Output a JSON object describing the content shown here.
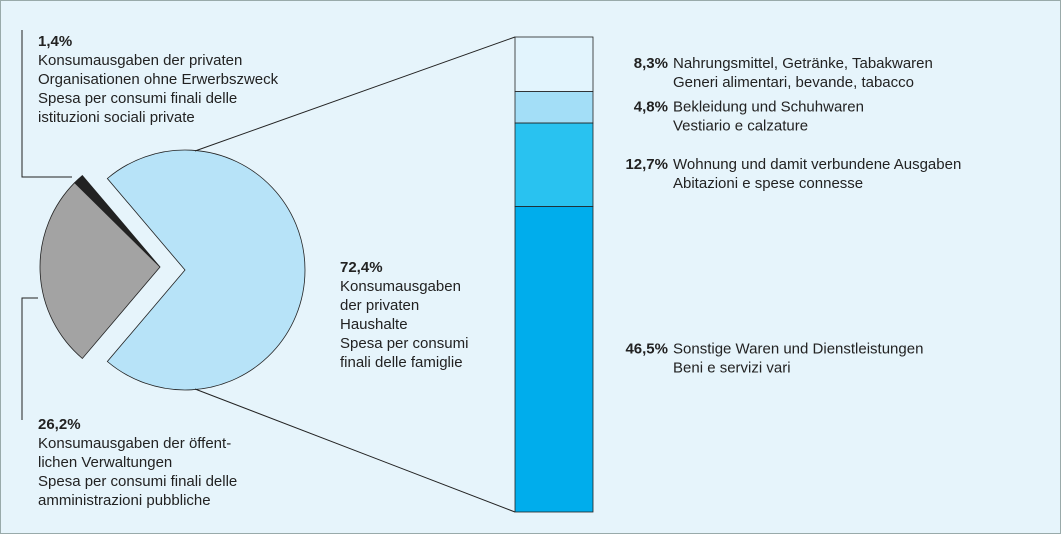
{
  "chart_data": {
    "type": "pie",
    "values": [
      72.4,
      1.4,
      26.2
    ],
    "value_labels": [
      "72,4%",
      "1,4%",
      "26,2%"
    ],
    "colors": [
      "#b7e3f8",
      "#222222",
      "#a3a3a3"
    ],
    "categories": [
      [
        "Konsumausgaben",
        "der privaten",
        "Haushalte",
        "Spesa per consumi",
        "finali delle famiglie"
      ],
      [
        "Konsumausgaben der privaten",
        "Organisationen ohne Erwerbszweck",
        "Spesa per consumi finali delle",
        "istituzioni sociali private"
      ],
      [
        "Konsumausgaben der öffent-",
        "lichen Verwaltungen",
        "Spesa per consumi finali delle",
        "amministrazioni pubbliche"
      ]
    ],
    "breakdown": {
      "values": [
        8.3,
        4.8,
        12.7,
        46.5
      ],
      "value_labels": [
        "8,3%",
        "4,8%",
        "12,7%",
        "46,5%"
      ],
      "colors": [
        "#e2f4fd",
        "#a3def7",
        "#29c2f0",
        "#00adec"
      ],
      "categories": [
        [
          "Nahrungsmittel, Getränke, Tabakwaren",
          "Generi alimentari, bevande, tabacco"
        ],
        [
          "Bekleidung und Schuhwaren",
          "Vestiario e calzature"
        ],
        [
          "Wohnung und damit verbundene Ausgaben",
          "Abitazioni e spese connesse"
        ],
        [
          "Sonstige Waren und Dienstleistungen",
          "Beni e servizi vari"
        ]
      ]
    }
  }
}
